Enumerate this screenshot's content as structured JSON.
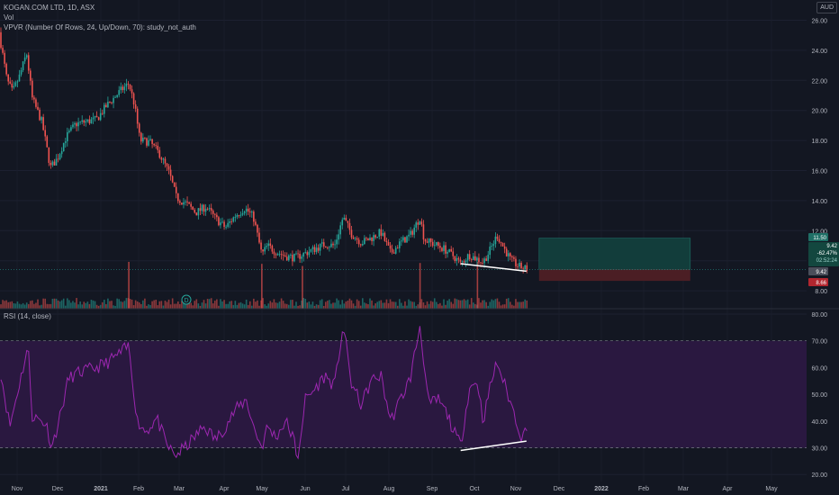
{
  "legend": {
    "symbol_line": "KOGAN.COM LTD, 1D, ASX",
    "vol_line": "Vol",
    "vpvr_line": "VPVR (Number Of Rows, 24, Up/Down, 70): study_not_auth",
    "rsi_line": "RSI (14, close)"
  },
  "price_axis": {
    "currency": "AUD",
    "ticks": [
      "26.00",
      "24.00",
      "22.00",
      "20.00",
      "18.00",
      "16.00",
      "14.00",
      "12.00",
      "10.00",
      "8.00"
    ],
    "badges": {
      "target": "11.50",
      "last_price": "9.42",
      "change": "-62.47%",
      "countdown": "02:52:24",
      "current": "9.42",
      "stop": "8.66"
    }
  },
  "rsi_axis": {
    "ticks": [
      "80.00",
      "70.00",
      "60.00",
      "50.00",
      "40.00",
      "30.00",
      "20.00"
    ]
  },
  "time_axis": {
    "labels": [
      "Nov",
      "Dec",
      "2021",
      "Feb",
      "Mar",
      "Apr",
      "May",
      "Jun",
      "Jul",
      "Aug",
      "Sep",
      "Oct",
      "Nov",
      "Dec",
      "2022",
      "Feb",
      "Mar",
      "Apr",
      "May"
    ]
  },
  "event_marker": "D",
  "colors": {
    "background": "#131722",
    "up": "#26a69a",
    "down": "#ef5350",
    "rsi_line": "#9c27b0",
    "rsi_band": "#2a1840",
    "target_zone": "#123d3b",
    "stop_zone": "#4b1e24",
    "last_price_line": "#26a69a"
  },
  "chart_data": {
    "type": "candlestick",
    "title": "KOGAN.COM LTD, 1D, ASX",
    "ylabel": "AUD",
    "ylim": [
      7.6,
      26.8
    ],
    "x_range": [
      "2020-11",
      "2022-05"
    ],
    "price_path": [
      {
        "t": "2020-10-28",
        "close": 24.8
      },
      {
        "t": "2020-11-02",
        "close": 22.0
      },
      {
        "t": "2020-11-06",
        "close": 21.2
      },
      {
        "t": "2020-11-11",
        "close": 22.3
      },
      {
        "t": "2020-11-16",
        "close": 23.8
      },
      {
        "t": "2020-11-20",
        "close": 20.8
      },
      {
        "t": "2020-11-27",
        "close": 19.2
      },
      {
        "t": "2020-12-03",
        "close": 16.2
      },
      {
        "t": "2020-12-08",
        "close": 16.8
      },
      {
        "t": "2020-12-14",
        "close": 18.2
      },
      {
        "t": "2020-12-21",
        "close": 19.1
      },
      {
        "t": "2021-01-05",
        "close": 19.4
      },
      {
        "t": "2021-01-12",
        "close": 20.3
      },
      {
        "t": "2021-01-22",
        "close": 21.3
      },
      {
        "t": "2021-01-28",
        "close": 21.8
      },
      {
        "t": "2021-02-01",
        "close": 20.4
      },
      {
        "t": "2021-02-05",
        "close": 18.0
      },
      {
        "t": "2021-02-12",
        "close": 17.9
      },
      {
        "t": "2021-02-19",
        "close": 17.1
      },
      {
        "t": "2021-02-26",
        "close": 15.8
      },
      {
        "t": "2021-03-03",
        "close": 14.2
      },
      {
        "t": "2021-03-10",
        "close": 13.8
      },
      {
        "t": "2021-03-17",
        "close": 13.2
      },
      {
        "t": "2021-03-24",
        "close": 13.6
      },
      {
        "t": "2021-03-31",
        "close": 12.8
      },
      {
        "t": "2021-04-07",
        "close": 12.2
      },
      {
        "t": "2021-04-14",
        "close": 13.0
      },
      {
        "t": "2021-04-21",
        "close": 13.5
      },
      {
        "t": "2021-04-27",
        "close": 12.9
      },
      {
        "t": "2021-05-03",
        "close": 10.4
      },
      {
        "t": "2021-05-07",
        "close": 11.0
      },
      {
        "t": "2021-05-13",
        "close": 10.6
      },
      {
        "t": "2021-05-20",
        "close": 10.3
      },
      {
        "t": "2021-05-27",
        "close": 10.2
      },
      {
        "t": "2021-06-03",
        "close": 10.5
      },
      {
        "t": "2021-06-10",
        "close": 10.8
      },
      {
        "t": "2021-06-17",
        "close": 11.1
      },
      {
        "t": "2021-06-24",
        "close": 11.0
      },
      {
        "t": "2021-06-30",
        "close": 12.9
      },
      {
        "t": "2021-07-06",
        "close": 11.8
      },
      {
        "t": "2021-07-13",
        "close": 11.2
      },
      {
        "t": "2021-07-20",
        "close": 11.5
      },
      {
        "t": "2021-07-27",
        "close": 11.9
      },
      {
        "t": "2021-08-03",
        "close": 10.5
      },
      {
        "t": "2021-08-10",
        "close": 11.2
      },
      {
        "t": "2021-08-17",
        "close": 11.7
      },
      {
        "t": "2021-08-24",
        "close": 12.9
      },
      {
        "t": "2021-08-27",
        "close": 11.4
      },
      {
        "t": "2021-09-03",
        "close": 11.1
      },
      {
        "t": "2021-09-10",
        "close": 10.8
      },
      {
        "t": "2021-09-17",
        "close": 10.3
      },
      {
        "t": "2021-09-22",
        "close": 9.8
      },
      {
        "t": "2021-09-28",
        "close": 10.4
      },
      {
        "t": "2021-10-04",
        "close": 10.1
      },
      {
        "t": "2021-10-08",
        "close": 9.9
      },
      {
        "t": "2021-10-13",
        "close": 10.7
      },
      {
        "t": "2021-10-18",
        "close": 11.7
      },
      {
        "t": "2021-10-22",
        "close": 11.0
      },
      {
        "t": "2021-10-28",
        "close": 10.0
      },
      {
        "t": "2021-11-03",
        "close": 9.6
      },
      {
        "t": "2021-11-09",
        "close": 9.42
      }
    ],
    "volume_spikes": [
      "2021-01-28",
      "2021-05-03",
      "2021-06-01",
      "2021-08-24",
      "2021-10-04"
    ],
    "divergence": {
      "price_line": {
        "from": {
          "t": "2021-09-22",
          "value": 9.8
        },
        "to": {
          "t": "2021-11-08",
          "value": 9.3
        }
      },
      "rsi_line": {
        "from": {
          "t": "2021-09-22",
          "value": 29
        },
        "to": {
          "t": "2021-11-08",
          "value": 32.5
        }
      }
    },
    "position": {
      "entry": 9.42,
      "target": 11.5,
      "stop": 8.66,
      "from": "2021-11-17",
      "to": "2022-03-05"
    },
    "rsi": {
      "ylim": [
        18.5,
        80.5
      ],
      "bands": [
        70,
        30
      ],
      "series": [
        {
          "t": "2020-10-28",
          "v": 60
        },
        {
          "t": "2020-11-04",
          "v": 38
        },
        {
          "t": "2020-11-10",
          "v": 52
        },
        {
          "t": "2020-11-17",
          "v": 68
        },
        {
          "t": "2020-11-20",
          "v": 42
        },
        {
          "t": "2020-11-30",
          "v": 39
        },
        {
          "t": "2020-12-04",
          "v": 30
        },
        {
          "t": "2020-12-10",
          "v": 42
        },
        {
          "t": "2020-12-16",
          "v": 56
        },
        {
          "t": "2020-12-23",
          "v": 58
        },
        {
          "t": "2021-01-05",
          "v": 60
        },
        {
          "t": "2021-01-13",
          "v": 62
        },
        {
          "t": "2021-01-21",
          "v": 65
        },
        {
          "t": "2021-01-28",
          "v": 68
        },
        {
          "t": "2021-02-03",
          "v": 40
        },
        {
          "t": "2021-02-09",
          "v": 36
        },
        {
          "t": "2021-02-17",
          "v": 41
        },
        {
          "t": "2021-02-24",
          "v": 31
        },
        {
          "t": "2021-03-02",
          "v": 27
        },
        {
          "t": "2021-03-09",
          "v": 30
        },
        {
          "t": "2021-03-16",
          "v": 34
        },
        {
          "t": "2021-03-23",
          "v": 38
        },
        {
          "t": "2021-03-31",
          "v": 33
        },
        {
          "t": "2021-04-07",
          "v": 38
        },
        {
          "t": "2021-04-14",
          "v": 44
        },
        {
          "t": "2021-04-22",
          "v": 48
        },
        {
          "t": "2021-04-27",
          "v": 38
        },
        {
          "t": "2021-05-03",
          "v": 30
        },
        {
          "t": "2021-05-07",
          "v": 38
        },
        {
          "t": "2021-05-13",
          "v": 34
        },
        {
          "t": "2021-05-20",
          "v": 40
        },
        {
          "t": "2021-05-26",
          "v": 33
        },
        {
          "t": "2021-05-28",
          "v": 24
        },
        {
          "t": "2021-06-03",
          "v": 48
        },
        {
          "t": "2021-06-10",
          "v": 52
        },
        {
          "t": "2021-06-17",
          "v": 57
        },
        {
          "t": "2021-06-24",
          "v": 53
        },
        {
          "t": "2021-06-30",
          "v": 76
        },
        {
          "t": "2021-07-06",
          "v": 54
        },
        {
          "t": "2021-07-13",
          "v": 46
        },
        {
          "t": "2021-07-20",
          "v": 55
        },
        {
          "t": "2021-07-27",
          "v": 57
        },
        {
          "t": "2021-08-03",
          "v": 40
        },
        {
          "t": "2021-08-10",
          "v": 48
        },
        {
          "t": "2021-08-17",
          "v": 56
        },
        {
          "t": "2021-08-24",
          "v": 76
        },
        {
          "t": "2021-08-30",
          "v": 46
        },
        {
          "t": "2021-09-06",
          "v": 48
        },
        {
          "t": "2021-09-13",
          "v": 42
        },
        {
          "t": "2021-09-17",
          "v": 36
        },
        {
          "t": "2021-09-22",
          "v": 31
        },
        {
          "t": "2021-09-28",
          "v": 52
        },
        {
          "t": "2021-10-04",
          "v": 55
        },
        {
          "t": "2021-10-08",
          "v": 40
        },
        {
          "t": "2021-10-14",
          "v": 55
        },
        {
          "t": "2021-10-18",
          "v": 62
        },
        {
          "t": "2021-10-25",
          "v": 51
        },
        {
          "t": "2021-11-01",
          "v": 40
        },
        {
          "t": "2021-11-05",
          "v": 33
        },
        {
          "t": "2021-11-09",
          "v": 40
        }
      ]
    }
  }
}
